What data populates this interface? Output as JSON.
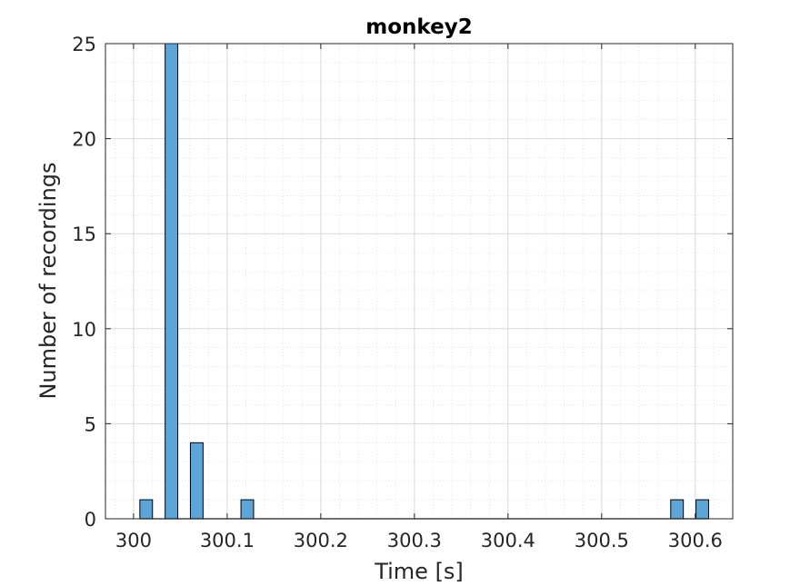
{
  "chart_data": {
    "type": "bar",
    "title": "monkey2",
    "xlabel": "Time [s]",
    "ylabel": "Number of recordings",
    "xlim": [
      299.97,
      300.64
    ],
    "ylim": [
      0,
      25
    ],
    "xticks": [
      300,
      300.1,
      300.2,
      300.3,
      300.4,
      300.5,
      300.6
    ],
    "xtick_labels": [
      "300",
      "300.1",
      "300.2",
      "300.3",
      "300.4",
      "300.5",
      "300.6"
    ],
    "yticks": [
      0,
      5,
      10,
      15,
      20,
      25
    ],
    "ytick_labels": [
      "0",
      "5",
      "10",
      "15",
      "20",
      "25"
    ],
    "grid": "on (major and minor)",
    "bin_width": 0.0135,
    "bins": [
      {
        "x": 300.0135,
        "value": 1
      },
      {
        "x": 300.0405,
        "value": 25
      },
      {
        "x": 300.0675,
        "value": 4
      },
      {
        "x": 300.1215,
        "value": 1
      },
      {
        "x": 300.5805,
        "value": 1
      },
      {
        "x": 300.6075,
        "value": 1
      }
    ],
    "bar_color": "#5DA5D6",
    "bar_edge_color": "#000000"
  }
}
